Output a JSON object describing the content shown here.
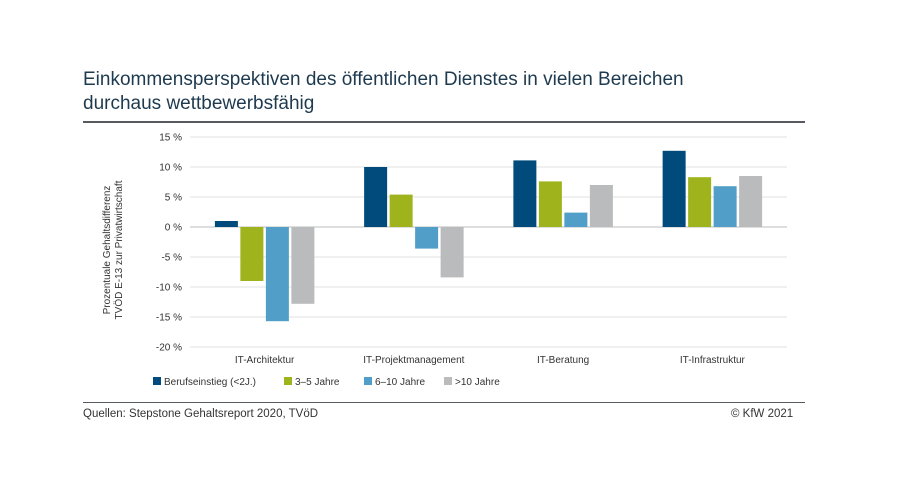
{
  "header": {
    "title_line1": "Einkommensperspektiven  des öffentlichen Dienstes in vielen Bereichen",
    "title_line2": "durchaus  wettbewerbsfähig"
  },
  "footer": {
    "source": "Quellen: Stepstone Gehaltsreport 2020, TVöD",
    "copyright": "© KfW 2021"
  },
  "chart_data": {
    "type": "bar",
    "categories": [
      "IT-Architektur",
      "IT-Projektmanagement",
      "IT-Beratung",
      "IT-Infrastruktur"
    ],
    "series": [
      {
        "name": "Berufseinstieg (<2J.)",
        "color": "#004b7c",
        "values": [
          1.0,
          10.0,
          11.1,
          12.7
        ]
      },
      {
        "name": "3–5 Jahre",
        "color": "#9fb31c",
        "values": [
          -9.0,
          5.4,
          7.6,
          8.3
        ]
      },
      {
        "name": "6–10 Jahre",
        "color": "#519fc8",
        "values": [
          -15.7,
          -3.6,
          2.4,
          6.8
        ]
      },
      {
        "name": ">10 Jahre",
        "color": "#b9bbbd",
        "values": [
          -12.8,
          -8.4,
          7.0,
          8.5
        ]
      }
    ],
    "ylabel_line1": "Prozentuale Gehaltsdifferenz",
    "ylabel_line2": "TVÖD E-13 zur Privatwirtschaft",
    "ylim": [
      -20,
      15
    ],
    "yticks": [
      15,
      10,
      5,
      0,
      -5,
      -10,
      -15,
      -20
    ],
    "ytick_labels": [
      "15 %",
      "10 %",
      "5 %",
      "0 %",
      "-5 %",
      "-10 %",
      "-15 %",
      "-20 %"
    ],
    "grid": true,
    "legend_position": "bottom-left"
  }
}
